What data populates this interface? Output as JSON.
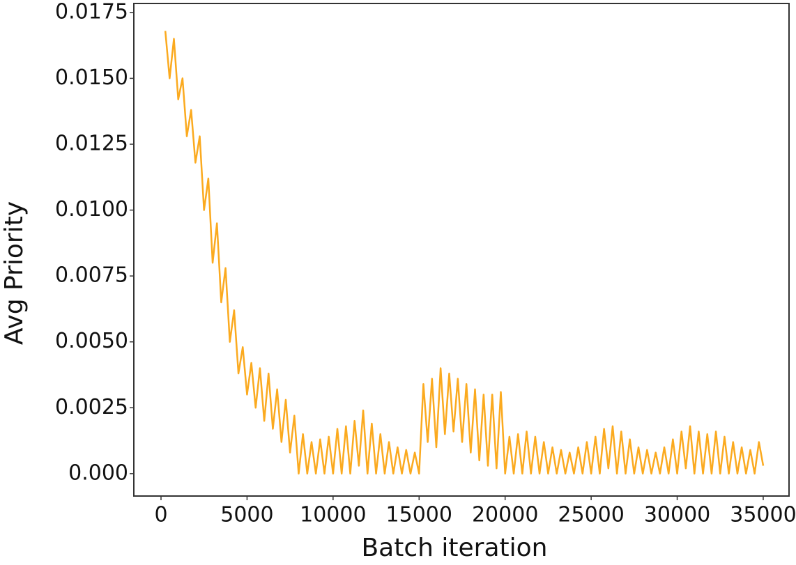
{
  "chart_data": {
    "type": "line",
    "xlabel": "Batch iteration",
    "ylabel": "Avg  Priority",
    "xlim": [
      -1580,
      36500
    ],
    "ylim": [
      -0.00085,
      0.01784
    ],
    "xticks": [
      0,
      5000,
      10000,
      15000,
      20000,
      25000,
      30000,
      35000
    ],
    "yticks": [
      {
        "value": 0,
        "label": "0.000"
      },
      0.0025,
      {
        "value": 0.005,
        "label": "0.0050"
      },
      0.0075,
      {
        "value": 0.01,
        "label": "0.0100"
      },
      0.0125,
      {
        "value": 0.015,
        "label": "0.0150"
      },
      0.0175
    ],
    "grid": false,
    "x": [
      250,
      500,
      750,
      1000,
      1250,
      1500,
      1750,
      2000,
      2250,
      2500,
      2750,
      3000,
      3250,
      3500,
      3750,
      4000,
      4250,
      4500,
      4750,
      5000,
      5250,
      5500,
      5750,
      6000,
      6250,
      6500,
      6750,
      7000,
      7250,
      7500,
      7750,
      8000,
      8250,
      8500,
      8750,
      9000,
      9250,
      9500,
      9750,
      10000,
      10250,
      10500,
      10750,
      11000,
      11250,
      11500,
      11750,
      12000,
      12250,
      12500,
      12750,
      13000,
      13250,
      13500,
      13750,
      14000,
      14250,
      14500,
      14750,
      15000,
      15250,
      15500,
      15750,
      16000,
      16250,
      16500,
      16750,
      17000,
      17250,
      17500,
      17750,
      18000,
      18250,
      18500,
      18750,
      19000,
      19250,
      19500,
      19750,
      20000,
      20250,
      20500,
      20750,
      21000,
      21250,
      21500,
      21750,
      22000,
      22250,
      22500,
      22750,
      23000,
      23250,
      23500,
      23750,
      24000,
      24250,
      24500,
      24750,
      25000,
      25250,
      25500,
      25750,
      26000,
      26250,
      26500,
      26750,
      27000,
      27250,
      27500,
      27750,
      28000,
      28250,
      28500,
      28750,
      29000,
      29250,
      29500,
      29750,
      30000,
      30250,
      30500,
      30750,
      31000,
      31250,
      31500,
      31750,
      32000,
      32250,
      32500,
      32750,
      33000,
      33250,
      33500,
      33750,
      34000,
      34250,
      34500,
      34750,
      35000
    ],
    "series": [
      {
        "color": "#fbaa1f",
        "values": [
          0.0168,
          0.015,
          0.0165,
          0.0142,
          0.015,
          0.0128,
          0.0138,
          0.0118,
          0.0128,
          0.01,
          0.0112,
          0.008,
          0.0095,
          0.0065,
          0.0078,
          0.005,
          0.0062,
          0.0038,
          0.0048,
          0.003,
          0.0042,
          0.0025,
          0.004,
          0.002,
          0.0038,
          0.0017,
          0.0032,
          0.0012,
          0.0028,
          0.0008,
          0.0022,
          0,
          0.0015,
          0,
          0.0012,
          0,
          0.0013,
          0,
          0.0014,
          0,
          0.0017,
          0,
          0.0018,
          0,
          0.002,
          0.0003,
          0.0024,
          0,
          0.0019,
          0,
          0.0015,
          0,
          0.0012,
          0,
          0.001,
          0,
          0.0009,
          0,
          0.0008,
          0,
          0.0034,
          0.0012,
          0.0036,
          0.001,
          0.004,
          0.0015,
          0.0038,
          0.0016,
          0.0036,
          0.0012,
          0.0034,
          0.0008,
          0.0032,
          0.0005,
          0.003,
          0.0003,
          0.003,
          0.0002,
          0.0031,
          0,
          0.0014,
          0,
          0.0015,
          0,
          0.0016,
          0,
          0.0014,
          0,
          0.0012,
          0,
          0.001,
          0,
          0.0009,
          0,
          0.0008,
          0,
          0.001,
          0,
          0.0012,
          0,
          0.0014,
          0,
          0.0017,
          0.0002,
          0.0018,
          0,
          0.0016,
          0,
          0.0013,
          0,
          0.001,
          0,
          0.0009,
          0,
          0.0008,
          0,
          0.001,
          0,
          0.0013,
          0,
          0.0016,
          0.0002,
          0.0018,
          0,
          0.0016,
          0,
          0.0015,
          0,
          0.0016,
          0,
          0.0014,
          0,
          0.0012,
          0,
          0.001,
          0,
          0.0009,
          0,
          0.0012,
          0.0003
        ]
      }
    ]
  }
}
